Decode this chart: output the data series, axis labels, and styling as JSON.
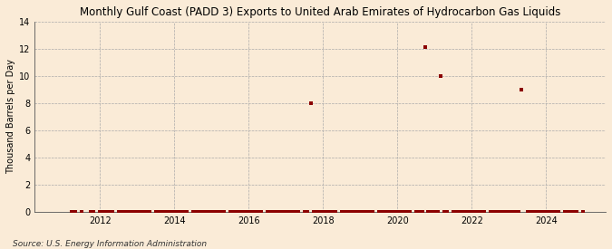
{
  "title": "Monthly Gulf Coast (PADD 3) Exports to United Arab Emirates of Hydrocarbon Gas Liquids",
  "ylabel": "Thousand Barrels per Day",
  "source": "Source: U.S. Energy Information Administration",
  "background_color": "#faebd7",
  "plot_bg_color": "#faebd7",
  "marker_color": "#8b0000",
  "grid_color": "#aaaaaa",
  "ylim": [
    0,
    14
  ],
  "yticks": [
    0,
    2,
    4,
    6,
    8,
    10,
    12,
    14
  ],
  "xlim_start": 2010.25,
  "xlim_end": 2025.6,
  "xticks": [
    2012,
    2014,
    2016,
    2018,
    2020,
    2022,
    2024
  ],
  "data_points": [
    [
      2011.25,
      0.0
    ],
    [
      2011.33,
      0.0
    ],
    [
      2011.5,
      0.0
    ],
    [
      2011.75,
      0.0
    ],
    [
      2011.83,
      0.0
    ],
    [
      2012.0,
      0.0
    ],
    [
      2012.08,
      0.0
    ],
    [
      2012.17,
      0.0
    ],
    [
      2012.25,
      0.0
    ],
    [
      2012.33,
      0.0
    ],
    [
      2012.5,
      0.0
    ],
    [
      2012.58,
      0.0
    ],
    [
      2012.67,
      0.0
    ],
    [
      2012.75,
      0.0
    ],
    [
      2012.83,
      0.0
    ],
    [
      2012.92,
      0.0
    ],
    [
      2013.0,
      0.0
    ],
    [
      2013.08,
      0.0
    ],
    [
      2013.17,
      0.0
    ],
    [
      2013.25,
      0.0
    ],
    [
      2013.33,
      0.0
    ],
    [
      2013.5,
      0.0
    ],
    [
      2013.58,
      0.0
    ],
    [
      2013.67,
      0.0
    ],
    [
      2013.75,
      0.0
    ],
    [
      2013.83,
      0.0
    ],
    [
      2013.92,
      0.0
    ],
    [
      2014.0,
      0.0
    ],
    [
      2014.08,
      0.0
    ],
    [
      2014.17,
      0.0
    ],
    [
      2014.25,
      0.0
    ],
    [
      2014.33,
      0.0
    ],
    [
      2014.5,
      0.0
    ],
    [
      2014.58,
      0.0
    ],
    [
      2014.67,
      0.0
    ],
    [
      2014.75,
      0.0
    ],
    [
      2014.83,
      0.0
    ],
    [
      2014.92,
      0.0
    ],
    [
      2015.0,
      0.0
    ],
    [
      2015.08,
      0.0
    ],
    [
      2015.17,
      0.0
    ],
    [
      2015.25,
      0.0
    ],
    [
      2015.33,
      0.0
    ],
    [
      2015.5,
      0.0
    ],
    [
      2015.58,
      0.0
    ],
    [
      2015.67,
      0.0
    ],
    [
      2015.75,
      0.0
    ],
    [
      2015.83,
      0.0
    ],
    [
      2015.92,
      0.0
    ],
    [
      2016.0,
      0.0
    ],
    [
      2016.08,
      0.0
    ],
    [
      2016.17,
      0.0
    ],
    [
      2016.25,
      0.0
    ],
    [
      2016.33,
      0.0
    ],
    [
      2016.5,
      0.0
    ],
    [
      2016.58,
      0.0
    ],
    [
      2016.67,
      0.0
    ],
    [
      2016.75,
      0.0
    ],
    [
      2016.83,
      0.0
    ],
    [
      2016.92,
      0.0
    ],
    [
      2017.0,
      0.0
    ],
    [
      2017.08,
      0.0
    ],
    [
      2017.17,
      0.0
    ],
    [
      2017.25,
      0.0
    ],
    [
      2017.33,
      0.0
    ],
    [
      2017.5,
      0.0
    ],
    [
      2017.58,
      0.0
    ],
    [
      2017.67,
      8.0
    ],
    [
      2017.75,
      0.0
    ],
    [
      2017.83,
      0.0
    ],
    [
      2017.92,
      0.0
    ],
    [
      2018.0,
      0.0
    ],
    [
      2018.08,
      0.0
    ],
    [
      2018.17,
      0.0
    ],
    [
      2018.25,
      0.0
    ],
    [
      2018.33,
      0.0
    ],
    [
      2018.5,
      0.0
    ],
    [
      2018.58,
      0.0
    ],
    [
      2018.67,
      0.0
    ],
    [
      2018.75,
      0.0
    ],
    [
      2018.83,
      0.0
    ],
    [
      2018.92,
      0.0
    ],
    [
      2019.0,
      0.0
    ],
    [
      2019.08,
      0.0
    ],
    [
      2019.17,
      0.0
    ],
    [
      2019.25,
      0.0
    ],
    [
      2019.33,
      0.0
    ],
    [
      2019.5,
      0.0
    ],
    [
      2019.58,
      0.0
    ],
    [
      2019.67,
      0.0
    ],
    [
      2019.75,
      0.0
    ],
    [
      2019.83,
      0.0
    ],
    [
      2019.92,
      0.0
    ],
    [
      2020.0,
      0.0
    ],
    [
      2020.08,
      0.0
    ],
    [
      2020.17,
      0.0
    ],
    [
      2020.25,
      0.0
    ],
    [
      2020.33,
      0.0
    ],
    [
      2020.5,
      0.0
    ],
    [
      2020.58,
      0.0
    ],
    [
      2020.67,
      0.0
    ],
    [
      2020.75,
      12.1
    ],
    [
      2020.83,
      0.0
    ],
    [
      2020.92,
      0.0
    ],
    [
      2021.0,
      0.0
    ],
    [
      2021.08,
      0.0
    ],
    [
      2021.17,
      10.0
    ],
    [
      2021.25,
      0.0
    ],
    [
      2021.33,
      0.0
    ],
    [
      2021.5,
      0.0
    ],
    [
      2021.58,
      0.0
    ],
    [
      2021.67,
      0.0
    ],
    [
      2021.75,
      0.0
    ],
    [
      2021.83,
      0.0
    ],
    [
      2021.92,
      0.0
    ],
    [
      2022.0,
      0.0
    ],
    [
      2022.08,
      0.0
    ],
    [
      2022.17,
      0.0
    ],
    [
      2022.25,
      0.0
    ],
    [
      2022.33,
      0.0
    ],
    [
      2022.5,
      0.0
    ],
    [
      2022.58,
      0.0
    ],
    [
      2022.67,
      0.0
    ],
    [
      2022.75,
      0.0
    ],
    [
      2022.83,
      0.0
    ],
    [
      2022.92,
      0.0
    ],
    [
      2023.0,
      0.0
    ],
    [
      2023.08,
      0.0
    ],
    [
      2023.17,
      0.0
    ],
    [
      2023.25,
      0.0
    ],
    [
      2023.33,
      9.0
    ],
    [
      2023.5,
      0.0
    ],
    [
      2023.58,
      0.0
    ],
    [
      2023.67,
      0.0
    ],
    [
      2023.75,
      0.0
    ],
    [
      2023.83,
      0.0
    ],
    [
      2023.92,
      0.0
    ],
    [
      2024.0,
      0.0
    ],
    [
      2024.08,
      0.0
    ],
    [
      2024.17,
      0.0
    ],
    [
      2024.25,
      0.0
    ],
    [
      2024.33,
      0.0
    ],
    [
      2024.5,
      0.0
    ],
    [
      2024.58,
      0.0
    ],
    [
      2024.67,
      0.0
    ],
    [
      2024.75,
      0.0
    ],
    [
      2024.83,
      0.0
    ],
    [
      2025.0,
      0.0
    ]
  ]
}
